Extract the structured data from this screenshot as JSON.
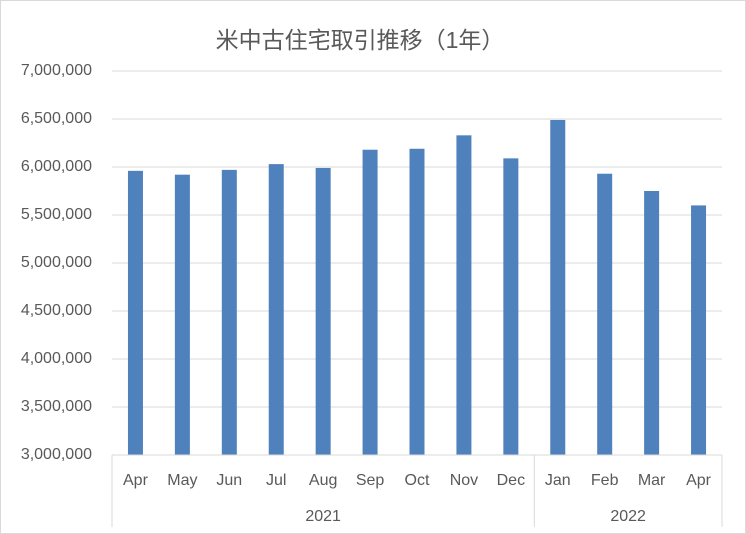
{
  "chart_data": {
    "type": "bar",
    "title": "米中古住宅取引推移（1年）",
    "category_groups": [
      {
        "name": "2021",
        "categories": [
          "Apr",
          "May",
          "Jun",
          "Jul",
          "Aug",
          "Sep",
          "Oct",
          "Nov",
          "Dec"
        ]
      },
      {
        "name": "2022",
        "categories": [
          "Jan",
          "Feb",
          "Mar",
          "Apr"
        ]
      }
    ],
    "values": [
      5960000,
      5920000,
      5970000,
      6030000,
      5990000,
      6180000,
      6190000,
      6330000,
      6090000,
      6490000,
      5930000,
      5750000,
      5600000
    ],
    "color": "#4f81bd",
    "ylim": [
      3000000,
      7000000
    ],
    "yticks": [
      {
        "value": 3000000,
        "label": "3,000,000"
      },
      {
        "value": 3500000,
        "label": "3,500,000"
      },
      {
        "value": 4000000,
        "label": "4,000,000"
      },
      {
        "value": 4500000,
        "label": "4,500,000"
      },
      {
        "value": 5000000,
        "label": "5,000,000"
      },
      {
        "value": 5500000,
        "label": "5,500,000"
      },
      {
        "value": 6000000,
        "label": "6,000,000"
      },
      {
        "value": 6500000,
        "label": "6,500,000"
      },
      {
        "value": 7000000,
        "label": "7,000,000"
      }
    ],
    "grid": true
  }
}
